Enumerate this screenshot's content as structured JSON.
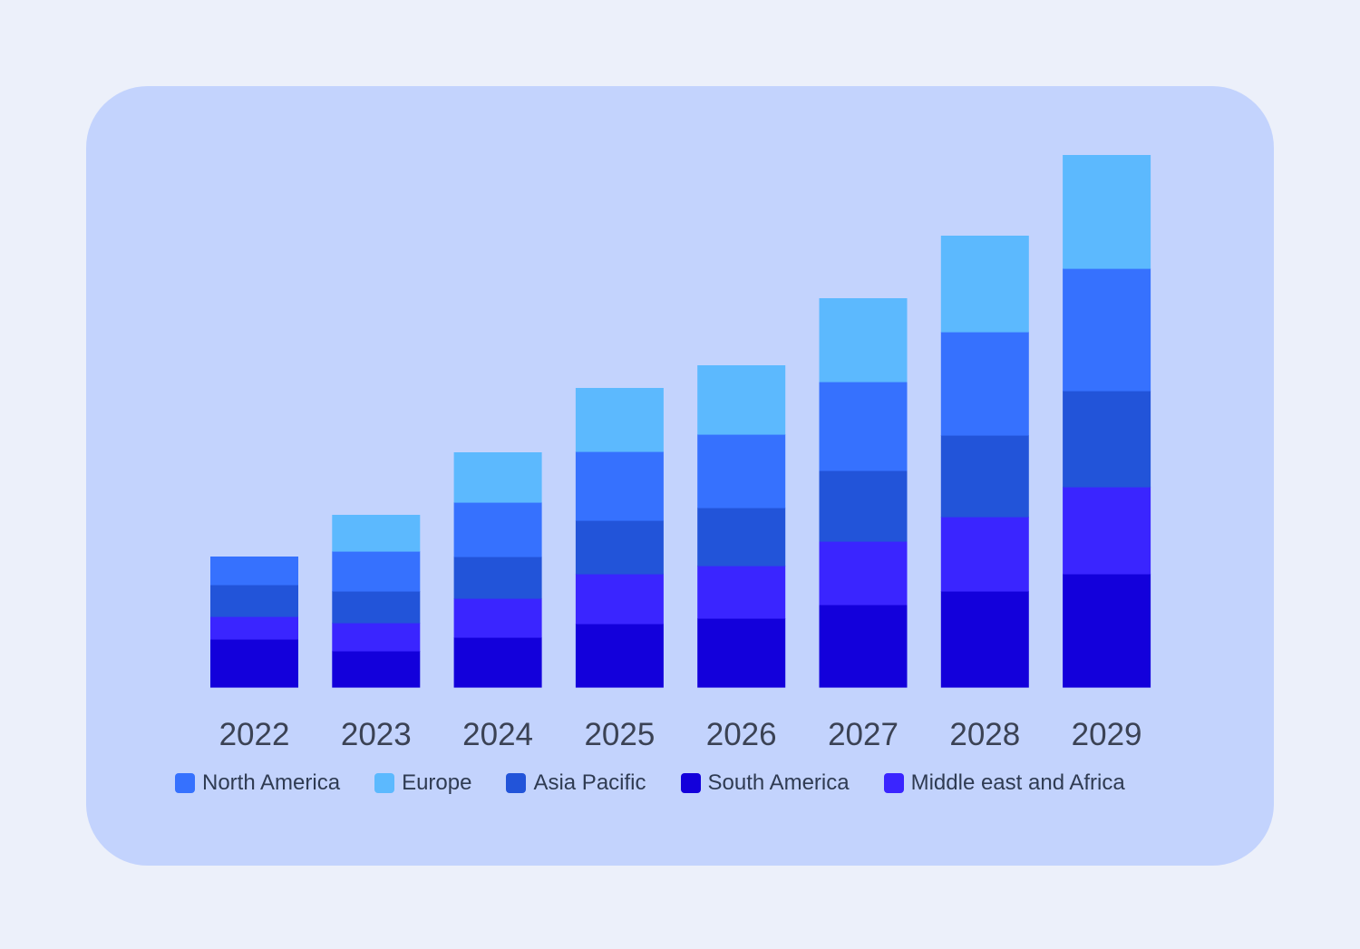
{
  "chart_data": {
    "type": "bar",
    "stacked": true,
    "categories": [
      "2022",
      "2023",
      "2024",
      "2025",
      "2026",
      "2027",
      "2028",
      "2029"
    ],
    "series": [
      {
        "name": "South America",
        "color": "#1300db",
        "values": [
          5.3,
          4.0,
          5.5,
          7.0,
          7.6,
          9.1,
          10.6,
          12.5
        ]
      },
      {
        "name": "Middle east and Africa",
        "color": "#3a25ff",
        "values": [
          2.5,
          3.1,
          4.3,
          5.5,
          5.8,
          7.0,
          8.2,
          9.6
        ]
      },
      {
        "name": "Asia Pacific",
        "color": "#2254d9",
        "values": [
          3.5,
          3.5,
          4.6,
          5.9,
          6.4,
          7.8,
          9.0,
          10.6
        ]
      },
      {
        "name": "North America",
        "color": "#3671fe",
        "values": [
          3.1,
          4.4,
          6.0,
          7.6,
          8.1,
          9.8,
          11.4,
          13.5
        ]
      },
      {
        "name": "Europe",
        "color": "#5cb9fe",
        "values": [
          0,
          4.0,
          5.5,
          7.0,
          7.6,
          9.2,
          10.6,
          12.5
        ]
      }
    ],
    "legend_order": [
      "North America",
      "Europe",
      "Asia Pacific",
      "South America",
      "Middle east and Africa"
    ],
    "legend_position": "bottom",
    "axes_visible": false,
    "grid": false
  }
}
